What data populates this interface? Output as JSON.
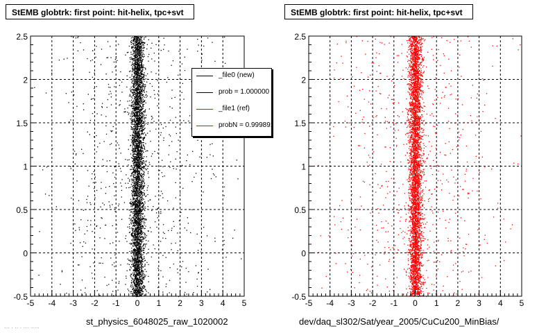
{
  "panels": [
    {
      "title": "StEMB globtrk: first point: hit-helix, tpc+svt",
      "xlabel": "st_physics_6048025_raw_1020002",
      "color": "#000000"
    },
    {
      "title": "StEMB globtrk: first point: hit-helix, tpc+svt",
      "xlabel": "dev/daq_sl302/Sat/year_2005/CuCu200_MinBias/",
      "color": "#ff0000"
    }
  ],
  "legend": {
    "entries": [
      {
        "label": "_file0 (new)",
        "color": "#000000"
      },
      {
        "label": "prob = 1.000000",
        "color": "#000000"
      },
      {
        "label": "_file1 (ref)",
        "color": "#ff0000"
      },
      {
        "label": "probN = 0.999891",
        "color": "#ff0000"
      }
    ]
  },
  "corner_text": "··· · ·· · ··· ·····",
  "chart_data": [
    {
      "type": "scatter",
      "title": "StEMB globtrk: first point: hit-helix, tpc+svt",
      "xlabel": "st_physics_6048025_raw_1020002",
      "ylabel": "",
      "xlim": [
        -5,
        5
      ],
      "ylim": [
        -0.5,
        2.5
      ],
      "xticks": [
        -5,
        -4,
        -3,
        -2,
        -1,
        0,
        1,
        2,
        3,
        4,
        5
      ],
      "yticks": [
        -0.5,
        0,
        0.5,
        1,
        1.5,
        2,
        2.5
      ],
      "grid": true,
      "series": [
        {
          "name": "_file0 (new)",
          "color": "#000000",
          "x_center": 0.0,
          "x_core_width": 0.5,
          "y_range": [
            -0.5,
            2.5
          ],
          "distribution": "dense band near x=0 with sparse halo"
        }
      ]
    },
    {
      "type": "scatter",
      "title": "StEMB globtrk: first point: hit-helix, tpc+svt",
      "xlabel": "dev/daq_sl302/Sat/year_2005/CuCu200_MinBias/",
      "ylabel": "",
      "xlim": [
        -5,
        5
      ],
      "ylim": [
        -0.5,
        2.5
      ],
      "xticks": [
        -5,
        -4,
        -3,
        -2,
        -1,
        0,
        1,
        2,
        3,
        4,
        5
      ],
      "yticks": [
        -0.5,
        0,
        0.5,
        1,
        1.5,
        2,
        2.5
      ],
      "grid": true,
      "series": [
        {
          "name": "_file1 (ref)",
          "color": "#ff0000",
          "x_center": 0.0,
          "x_core_width": 0.5,
          "y_range": [
            -0.5,
            2.5
          ],
          "distribution": "dense band near x=0 with sparse halo"
        }
      ]
    }
  ]
}
